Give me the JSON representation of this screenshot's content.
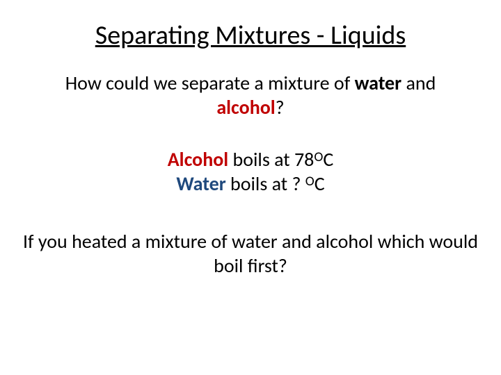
{
  "colors": {
    "text": "#000000",
    "accent_red": "#c00000",
    "accent_blue": "#1f497d",
    "background": "#ffffff"
  },
  "title": "Separating Mixtures - Liquids",
  "q1": {
    "prefix": "How could we separate a mixture of ",
    "water": "water",
    "middle": " and ",
    "alcohol": "alcohol",
    "suffix": "?"
  },
  "facts": {
    "alcohol_label": "Alcohol",
    "alcohol_rest": " boils at 78",
    "degree": "O",
    "unit": "C",
    "water_label": "Water",
    "water_rest": " boils at   ? ",
    "water_unit": "C"
  },
  "q2": "If you heated a mixture of water and alcohol which would boil first?"
}
